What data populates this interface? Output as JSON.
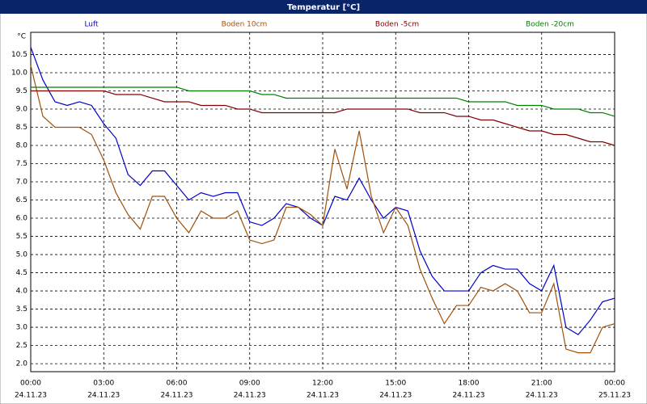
{
  "chart_data": {
    "type": "line",
    "title": "Temperatur [°C]",
    "y_label": "°C",
    "x": [
      0,
      0.5,
      1,
      1.5,
      2,
      2.5,
      3,
      3.5,
      4,
      4.5,
      5,
      5.5,
      6,
      6.5,
      7,
      7.5,
      8,
      8.5,
      9,
      9.5,
      10,
      10.5,
      11,
      11.5,
      12,
      12.5,
      13,
      13.5,
      14,
      14.5,
      15,
      15.5,
      16,
      16.5,
      17,
      17.5,
      18,
      18.5,
      19,
      19.5,
      20,
      20.5,
      21,
      21.5,
      22,
      22.5,
      23,
      23.5,
      24
    ],
    "series": [
      {
        "name": "Luft",
        "color": "#0000cc",
        "values": [
          10.7,
          9.8,
          9.2,
          9.1,
          9.2,
          9.1,
          8.6,
          8.2,
          7.2,
          6.9,
          7.3,
          7.3,
          6.9,
          6.5,
          6.7,
          6.6,
          6.7,
          6.7,
          5.9,
          5.8,
          6.0,
          6.4,
          6.3,
          6.0,
          5.8,
          6.6,
          6.5,
          7.1,
          6.5,
          6.0,
          6.3,
          6.2,
          5.1,
          4.4,
          4.0,
          4.0,
          4.0,
          4.5,
          4.7,
          4.6,
          4.6,
          4.2,
          4.0,
          4.7,
          3.0,
          2.8,
          3.2,
          3.7,
          3.8
        ]
      },
      {
        "name": "Boden 10cm",
        "color": "#a0500a",
        "values": [
          10.2,
          8.8,
          8.5,
          8.5,
          8.5,
          8.3,
          7.6,
          6.7,
          6.1,
          5.7,
          6.6,
          6.6,
          6.0,
          5.6,
          6.2,
          6.0,
          6.0,
          6.2,
          5.4,
          5.3,
          5.4,
          6.3,
          6.3,
          6.1,
          5.8,
          7.9,
          6.8,
          8.4,
          6.6,
          5.6,
          6.3,
          5.8,
          4.6,
          3.8,
          3.1,
          3.6,
          3.6,
          4.1,
          4.0,
          4.2,
          4.0,
          3.4,
          3.4,
          4.2,
          2.4,
          2.3,
          2.3,
          3.0,
          3.1
        ]
      },
      {
        "name": "Boden -5cm",
        "color": "#800000",
        "values": [
          9.5,
          9.5,
          9.5,
          9.5,
          9.5,
          9.5,
          9.5,
          9.4,
          9.4,
          9.4,
          9.3,
          9.2,
          9.2,
          9.2,
          9.1,
          9.1,
          9.1,
          9.0,
          9.0,
          8.9,
          8.9,
          8.9,
          8.9,
          8.9,
          8.9,
          8.9,
          9.0,
          9.0,
          9.0,
          9.0,
          9.0,
          9.0,
          8.9,
          8.9,
          8.9,
          8.8,
          8.8,
          8.7,
          8.7,
          8.6,
          8.5,
          8.4,
          8.4,
          8.3,
          8.3,
          8.2,
          8.1,
          8.1,
          8.0
        ]
      },
      {
        "name": "Boden -20cm",
        "color": "#008000",
        "values": [
          9.6,
          9.6,
          9.6,
          9.6,
          9.6,
          9.6,
          9.6,
          9.6,
          9.6,
          9.6,
          9.6,
          9.6,
          9.6,
          9.5,
          9.5,
          9.5,
          9.5,
          9.5,
          9.5,
          9.4,
          9.4,
          9.3,
          9.3,
          9.3,
          9.3,
          9.3,
          9.3,
          9.3,
          9.3,
          9.3,
          9.3,
          9.3,
          9.3,
          9.3,
          9.3,
          9.3,
          9.2,
          9.2,
          9.2,
          9.2,
          9.1,
          9.1,
          9.1,
          9.0,
          9.0,
          9.0,
          8.9,
          8.9,
          8.8
        ]
      }
    ],
    "xlim": [
      0,
      24
    ],
    "xticks": [
      {
        "value": 0,
        "label": "00:00"
      },
      {
        "value": 3,
        "label": "03:00"
      },
      {
        "value": 6,
        "label": "06:00"
      },
      {
        "value": 9,
        "label": "09:00"
      },
      {
        "value": 12,
        "label": "12:00"
      },
      {
        "value": 15,
        "label": "15:00"
      },
      {
        "value": 18,
        "label": "18:00"
      },
      {
        "value": 21,
        "label": "21:00"
      },
      {
        "value": 24,
        "label": "00:00"
      }
    ],
    "xtick_dates": [
      "24.11.23",
      "24.11.23",
      "24.11.23",
      "24.11.23",
      "24.11.23",
      "24.11.23",
      "24.11.23",
      "24.11.23",
      "25.11.23"
    ],
    "ylim": [
      1.78,
      11.11
    ],
    "yticks": [
      {
        "value": 2,
        "label": "2.0"
      },
      {
        "value": 2.5,
        "label": "2.5"
      },
      {
        "value": 3,
        "label": "3.0"
      },
      {
        "value": 3.5,
        "label": "3.5"
      },
      {
        "value": 4,
        "label": "4.0"
      },
      {
        "value": 4.5,
        "label": "4.5"
      },
      {
        "value": 5,
        "label": "5.0"
      },
      {
        "value": 5.5,
        "label": "5.5"
      },
      {
        "value": 6,
        "label": "6.0"
      },
      {
        "value": 6.5,
        "label": "6.5"
      },
      {
        "value": 7,
        "label": "7.0"
      },
      {
        "value": 7.5,
        "label": "7.5"
      },
      {
        "value": 8,
        "label": "8.0"
      },
      {
        "value": 8.5,
        "label": "8.5"
      },
      {
        "value": 9,
        "label": "9.0"
      },
      {
        "value": 9.5,
        "label": "9.5"
      },
      {
        "value": 10,
        "label": "10.0"
      },
      {
        "value": 10.5,
        "label": "10.5"
      }
    ],
    "grid": true
  }
}
